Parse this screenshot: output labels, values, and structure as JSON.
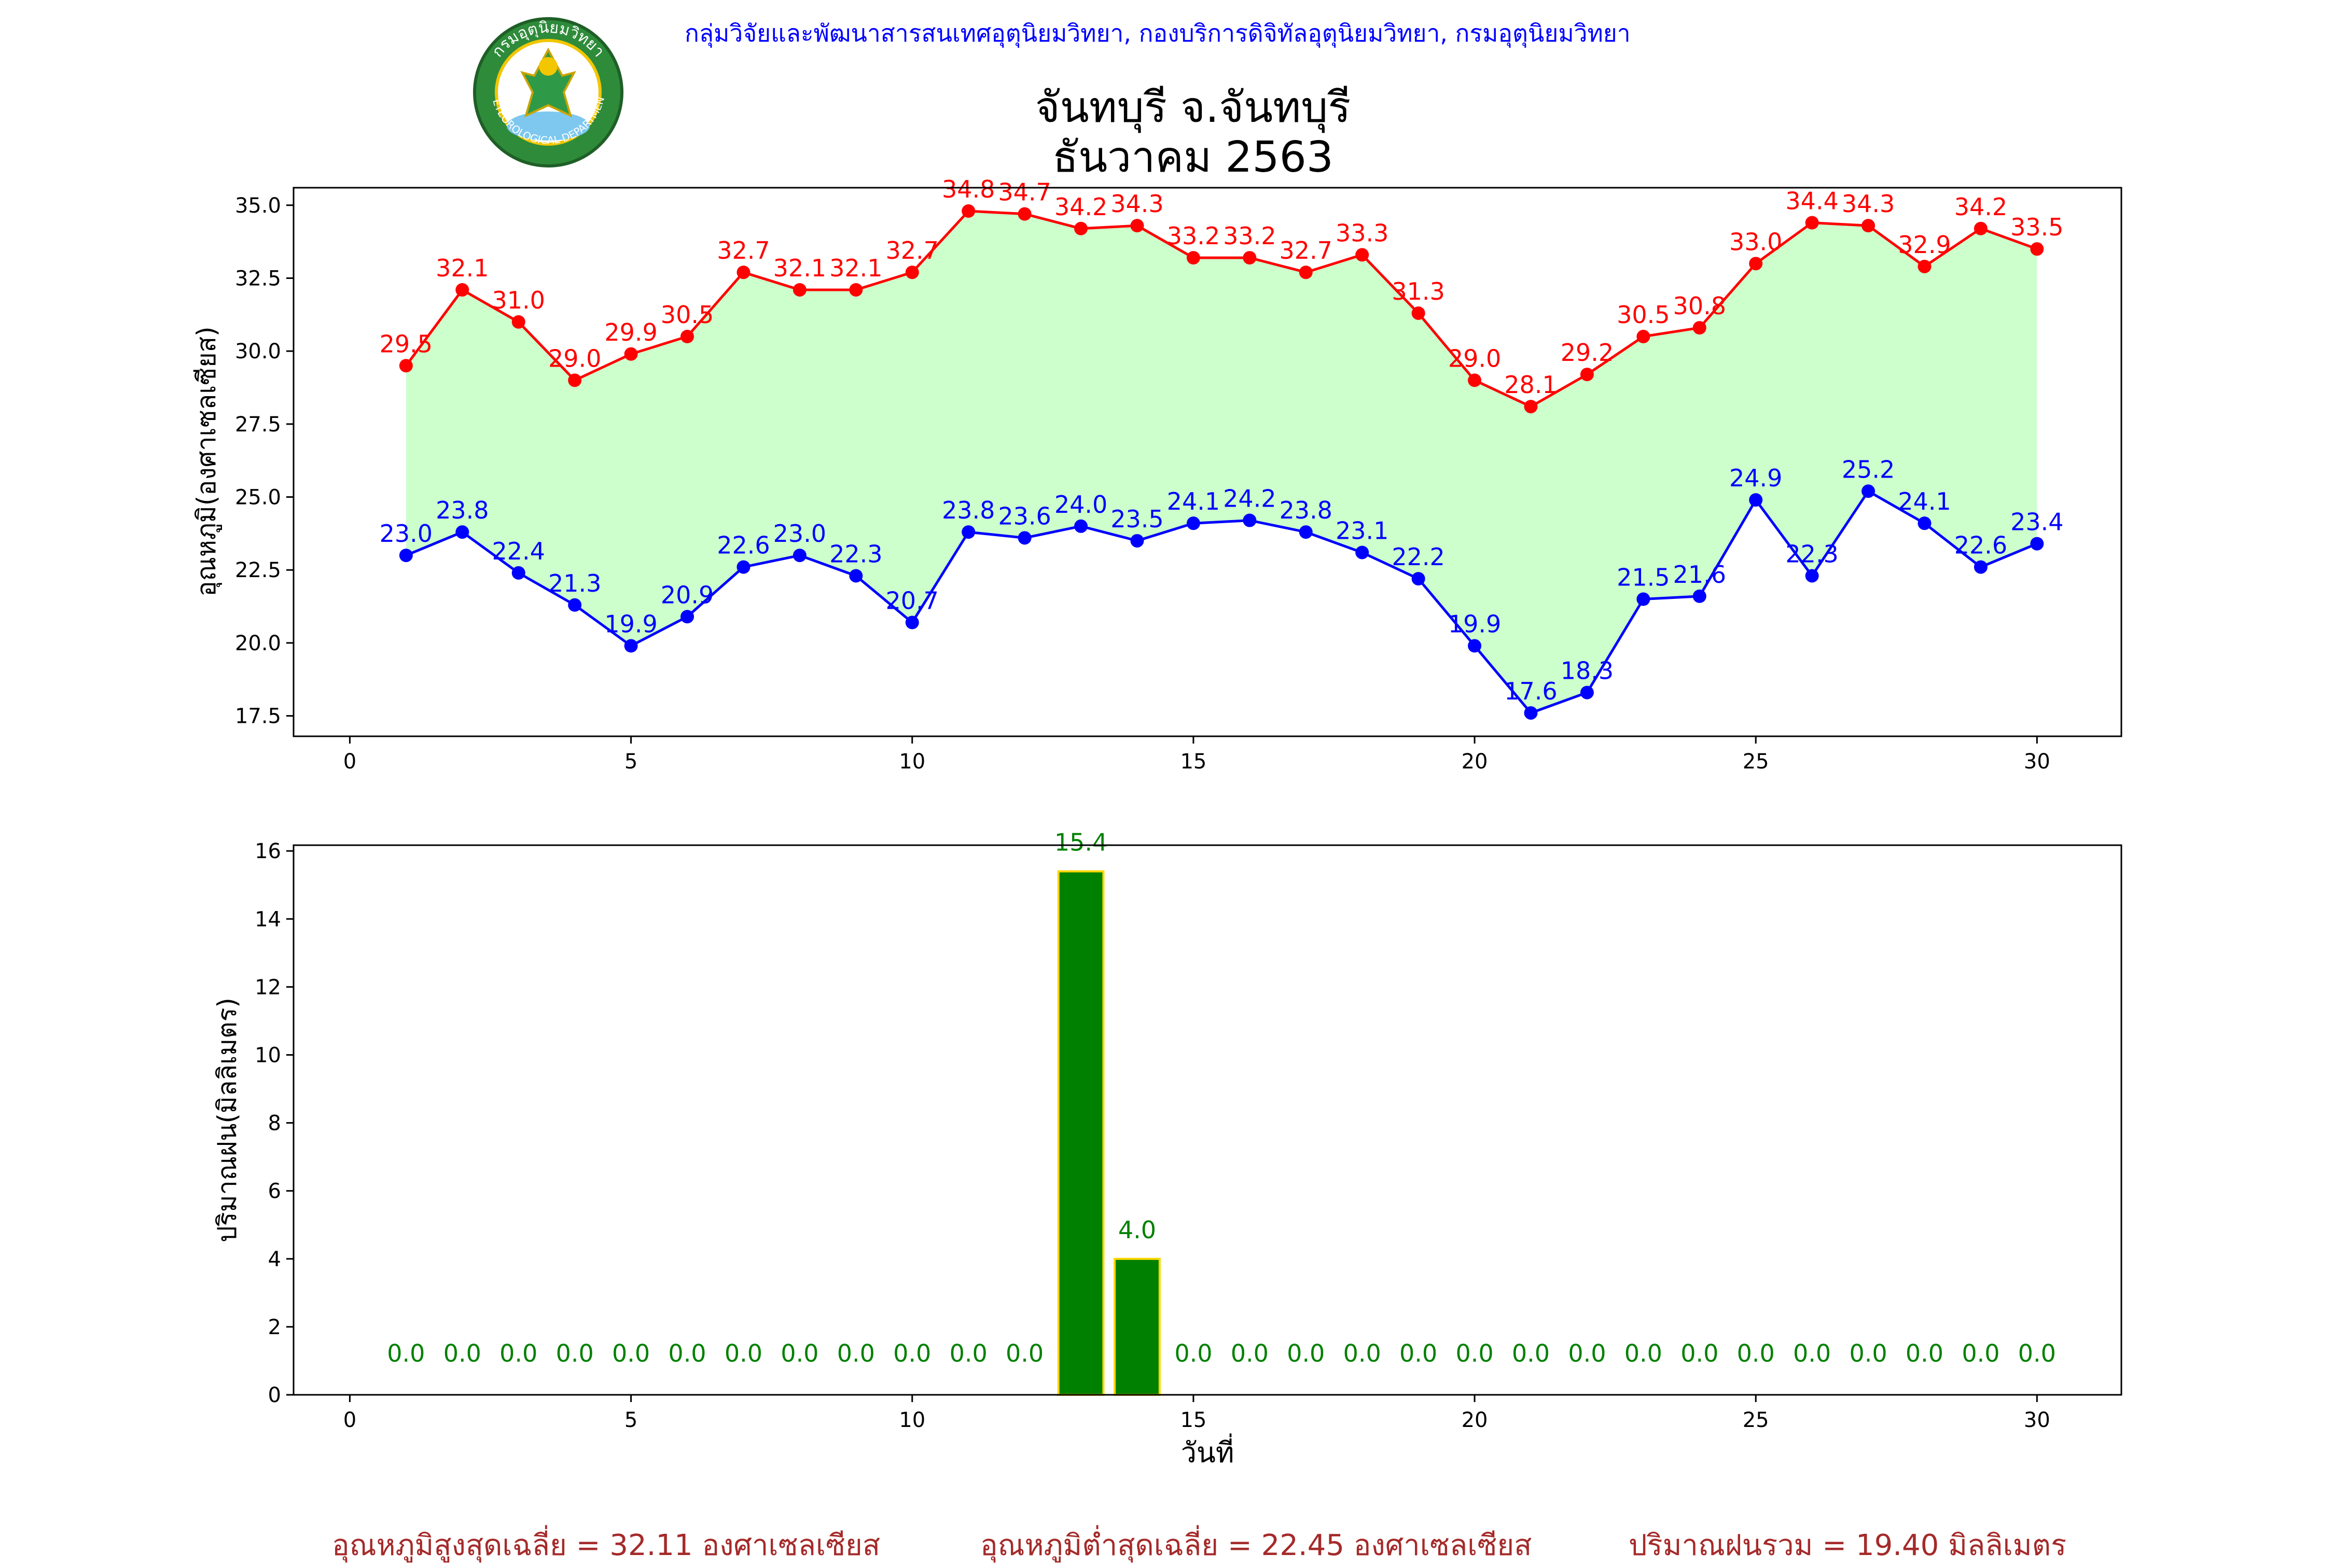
{
  "header": {
    "credit": "กลุ่มวิจัยและพัฒนาสารสนเทศอุตุนิยมวิทยา, กองบริการดิจิทัลอุตุนิยมวิทยา, กรมอุตุนิยมวิทยา",
    "title_line1": "จันทบุรี จ.จันทบุรี",
    "title_line2": "ธันวาคม 2563",
    "logo_text_top": "กรมอุตุนิยมวิทยา",
    "logo_text_bottom": "METEOROLOGICAL DEPARTMENT"
  },
  "colors": {
    "tmax": "#ff0000",
    "tmin": "#0000ff",
    "fill": "#ccffcc",
    "rain_bar": "#008000",
    "rain_edge": "#ffd700",
    "rain_label": "#008000",
    "summary": "#a52a2a"
  },
  "chart_data": [
    {
      "type": "line",
      "ylabel": "อุณหภูมิ(องศาเซลเซียส)",
      "xlabel": "",
      "xlim": [
        -1,
        31.5
      ],
      "ylim": [
        16.8,
        35.6
      ],
      "xticks": [
        0,
        5,
        10,
        15,
        20,
        25,
        30
      ],
      "yticks": [
        "17.5",
        "20.0",
        "22.5",
        "25.0",
        "27.5",
        "30.0",
        "32.5",
        "35.0"
      ],
      "fill_between": true,
      "x": [
        1,
        2,
        3,
        4,
        5,
        6,
        7,
        8,
        9,
        10,
        11,
        12,
        13,
        14,
        15,
        16,
        17,
        18,
        19,
        20,
        21,
        22,
        23,
        24,
        25,
        26,
        27,
        28,
        29,
        30
      ],
      "series": [
        {
          "key": "tmax",
          "values": [
            29.5,
            32.1,
            31.0,
            29.0,
            29.9,
            30.5,
            32.7,
            32.1,
            32.1,
            32.7,
            34.8,
            34.7,
            34.2,
            34.3,
            33.2,
            33.2,
            32.7,
            33.3,
            31.3,
            29.0,
            28.1,
            29.2,
            30.5,
            30.8,
            33.0,
            34.4,
            34.3,
            32.9,
            34.2,
            33.5
          ]
        },
        {
          "key": "tmin",
          "values": [
            23.0,
            23.8,
            22.4,
            21.3,
            19.9,
            20.9,
            22.6,
            23.0,
            22.3,
            20.7,
            23.8,
            23.6,
            24.0,
            23.5,
            24.1,
            24.2,
            23.8,
            23.1,
            22.2,
            19.9,
            17.6,
            18.3,
            21.5,
            21.6,
            24.9,
            22.3,
            25.2,
            24.1,
            22.6,
            23.4
          ]
        }
      ]
    },
    {
      "type": "bar",
      "ylabel": "ปริมาณฝน(มิลลิเมตร)",
      "xlabel": "วันที่",
      "xlim": [
        -1,
        31.5
      ],
      "ylim": [
        0,
        16.17
      ],
      "xticks": [
        0,
        5,
        10,
        15,
        20,
        25,
        30
      ],
      "yticks": [
        "0",
        "2",
        "4",
        "6",
        "8",
        "10",
        "12",
        "14",
        "16"
      ],
      "x": [
        1,
        2,
        3,
        4,
        5,
        6,
        7,
        8,
        9,
        10,
        11,
        12,
        13,
        14,
        15,
        16,
        17,
        18,
        19,
        20,
        21,
        22,
        23,
        24,
        25,
        26,
        27,
        28,
        29,
        30
      ],
      "values": [
        0.0,
        0.0,
        0.0,
        0.0,
        0.0,
        0.0,
        0.0,
        0.0,
        0.0,
        0.0,
        0.0,
        0.0,
        15.4,
        4.0,
        0.0,
        0.0,
        0.0,
        0.0,
        0.0,
        0.0,
        0.0,
        0.0,
        0.0,
        0.0,
        0.0,
        0.0,
        0.0,
        0.0,
        0.0,
        0.0
      ]
    }
  ],
  "summary": {
    "tmax_avg": "อุณหภูมิสูงสุดเฉลี่ย = 32.11 องศาเซลเซียส",
    "tmin_avg": "อุณหภูมิต่ำสุดเฉลี่ย = 22.45 องศาเซลเซียส",
    "rain_total": "ปริมาณฝนรวม = 19.40 มิลลิเมตร"
  }
}
